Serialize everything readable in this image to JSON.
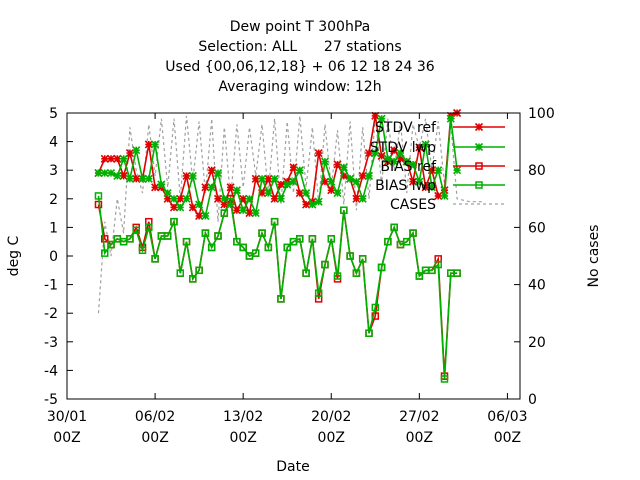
{
  "chart_data": {
    "type": "line",
    "title_lines": [
      "Dew point T 300hPa",
      "Selection: ALL      27 stations",
      "Used {00,06,12,18} + 06 12 18 24 36",
      "Averaging window: 12h"
    ],
    "xlabel": "Date",
    "ylabel": "deg C",
    "y2label": "No cases",
    "xlim": [
      0,
      36
    ],
    "ylim": [
      -5,
      5
    ],
    "y2lim": [
      0,
      100
    ],
    "xticks": [
      {
        "pos": 0,
        "label1": "30/01",
        "label2": "00Z"
      },
      {
        "pos": 7,
        "label1": "06/02",
        "label2": "00Z"
      },
      {
        "pos": 14,
        "label1": "13/02",
        "label2": "00Z"
      },
      {
        "pos": 21,
        "label1": "20/02",
        "label2": "00Z"
      },
      {
        "pos": 28,
        "label1": "27/02",
        "label2": "00Z"
      },
      {
        "pos": 35,
        "label1": "06/03",
        "label2": "00Z"
      }
    ],
    "yticks": [
      -5,
      -4,
      -3,
      -2,
      -1,
      0,
      1,
      2,
      3,
      4,
      5
    ],
    "y2ticks": [
      0,
      20,
      40,
      60,
      80,
      100
    ],
    "x": [
      2.5,
      3.0,
      3.5,
      4.0,
      4.5,
      5.0,
      5.5,
      6.0,
      6.5,
      7.0,
      7.5,
      8.0,
      8.5,
      9.0,
      9.5,
      10.0,
      10.5,
      11.0,
      11.5,
      12.0,
      12.5,
      13.0,
      13.5,
      14.0,
      14.5,
      15.0,
      15.5,
      16.0,
      16.5,
      17.0,
      17.5,
      18.0,
      18.5,
      19.0,
      19.5,
      20.0,
      20.5,
      21.0,
      21.5,
      22.0,
      22.5,
      23.0,
      23.5,
      24.0,
      24.5,
      25.0,
      25.5,
      26.0,
      26.5,
      27.0,
      27.5,
      28.0,
      28.5,
      29.0,
      29.5,
      30.0,
      30.5,
      31.0
    ],
    "series": [
      {
        "name": "STDV ref",
        "color": "#e00000",
        "marker": "star",
        "axis": "y1",
        "values": [
          2.9,
          3.4,
          3.4,
          3.4,
          2.8,
          3.6,
          2.7,
          2.7,
          3.9,
          2.4,
          2.4,
          2.0,
          1.7,
          2.0,
          2.8,
          1.7,
          1.4,
          2.4,
          3.0,
          2.0,
          1.8,
          2.4,
          1.6,
          2.0,
          1.5,
          2.7,
          2.2,
          2.7,
          2.0,
          2.5,
          2.6,
          3.1,
          2.2,
          1.8,
          1.9,
          3.6,
          2.6,
          2.3,
          3.2,
          2.8,
          2.7,
          2.0,
          2.8,
          3.6,
          4.9,
          3.5,
          3.3,
          3.7,
          3.4,
          3.3,
          2.6,
          3.8,
          2.4,
          3.0,
          2.1,
          2.3,
          4.9,
          5.0
        ]
      },
      {
        "name": "STDV lwp",
        "color": "#00b000",
        "marker": "star",
        "axis": "y1",
        "values": [
          2.9,
          2.9,
          2.9,
          2.8,
          3.4,
          2.7,
          3.7,
          2.7,
          2.7,
          3.9,
          2.5,
          2.2,
          2.0,
          1.7,
          2.0,
          2.8,
          1.8,
          1.4,
          2.4,
          2.9,
          2.0,
          1.8,
          2.3,
          1.6,
          2.0,
          1.5,
          2.7,
          2.2,
          2.7,
          2.0,
          2.5,
          2.6,
          3.0,
          2.2,
          1.8,
          1.9,
          3.3,
          2.6,
          2.2,
          3.1,
          2.7,
          2.6,
          2.0,
          2.8,
          3.6,
          4.8,
          3.4,
          3.3,
          3.6,
          3.3,
          3.2,
          2.6,
          3.9,
          2.4,
          3.0,
          2.1,
          4.8,
          3.0
        ]
      },
      {
        "name": "BIAS ref",
        "color": "#e00000",
        "marker": "square",
        "axis": "y1",
        "values": [
          1.8,
          0.6,
          0.4,
          0.6,
          0.5,
          0.6,
          1.0,
          0.3,
          1.2,
          -0.1,
          0.7,
          0.7,
          1.2,
          -0.6,
          0.5,
          -0.8,
          -0.5,
          0.8,
          0.3,
          0.7,
          1.5,
          2.0,
          0.5,
          0.3,
          0.0,
          0.1,
          0.8,
          0.3,
          1.2,
          -1.5,
          0.3,
          0.5,
          0.6,
          -0.6,
          0.6,
          -1.5,
          -0.3,
          0.6,
          -0.8,
          1.6,
          0.0,
          -0.6,
          -0.1,
          -2.7,
          -2.1,
          -0.4,
          0.5,
          1.0,
          0.4,
          0.5,
          0.8,
          -0.7,
          -0.5,
          -0.5,
          -0.1,
          -4.2,
          -0.6,
          -0.6
        ]
      },
      {
        "name": "BIAS lwp",
        "color": "#00b000",
        "marker": "square",
        "axis": "y1",
        "values": [
          2.1,
          0.1,
          0.4,
          0.6,
          0.5,
          0.6,
          0.9,
          0.2,
          1.0,
          -0.1,
          0.7,
          0.7,
          1.2,
          -0.6,
          0.5,
          -0.8,
          -0.5,
          0.8,
          0.3,
          0.7,
          1.5,
          1.9,
          0.5,
          0.3,
          0.0,
          0.1,
          0.8,
          0.3,
          1.2,
          -1.5,
          0.3,
          0.5,
          0.6,
          -0.6,
          0.6,
          -1.3,
          -0.3,
          0.6,
          -0.7,
          1.6,
          0.0,
          -0.6,
          -0.1,
          -2.7,
          -1.8,
          -0.4,
          0.5,
          1.0,
          0.4,
          0.5,
          0.8,
          -0.7,
          -0.5,
          -0.5,
          -0.3,
          -4.3,
          -0.6,
          -0.6
        ]
      },
      {
        "name": "CASES",
        "color": "#a0a0a0",
        "marker": "none",
        "dash": true,
        "axis": "y2",
        "x": [
          2.5,
          3.0,
          3.5,
          4.0,
          4.5,
          5.0,
          5.5,
          6.0,
          6.5,
          7.0,
          7.5,
          8.0,
          8.5,
          9.0,
          9.5,
          10.0,
          10.5,
          11.0,
          11.5,
          12.0,
          12.5,
          13.0,
          13.5,
          14.0,
          14.5,
          15.0,
          15.5,
          16.0,
          16.5,
          17.0,
          17.5,
          18.0,
          18.5,
          19.0,
          19.5,
          20.0,
          20.5,
          21.0,
          21.5,
          22.0,
          22.5,
          23.0,
          23.5,
          24.0,
          24.5,
          25.0,
          25.5,
          26.0,
          26.5,
          27.0,
          27.5,
          28.0,
          28.5,
          29.0,
          29.5,
          30.0,
          30.5,
          31.0,
          32.0,
          33.0
        ],
        "values": [
          30,
          62,
          50,
          70,
          58,
          95,
          80,
          72,
          96,
          78,
          98,
          74,
          98,
          70,
          99,
          76,
          97,
          72,
          98,
          62,
          95,
          70,
          96,
          74,
          95,
          78,
          96,
          72,
          98,
          68,
          97,
          72,
          99,
          74,
          95,
          68,
          96,
          74,
          94,
          68,
          97,
          66,
          95,
          70,
          99,
          75,
          98,
          80,
          97,
          72,
          96,
          88,
          98,
          80,
          97,
          75,
          96,
          70,
          69,
          69
        ]
      }
    ]
  }
}
